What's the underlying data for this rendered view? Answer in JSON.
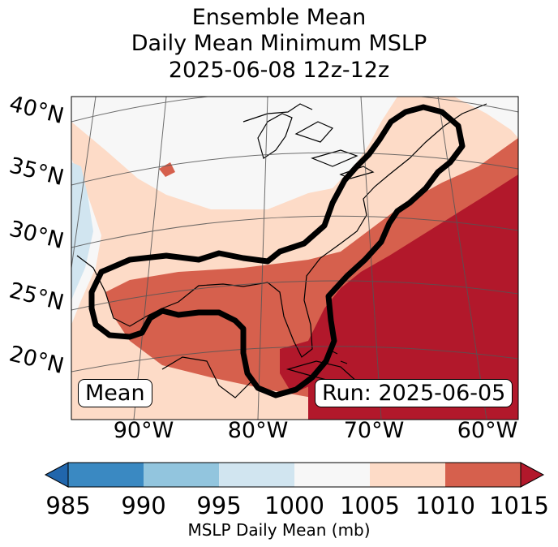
{
  "title": {
    "line1": "Ensemble Mean",
    "line2": "Daily Mean Minimum MSLP",
    "line3": "2025-06-08 12z-12z"
  },
  "map": {
    "lat_labels": [
      "40°N",
      "35°N",
      "30°N",
      "25°N",
      "20°N"
    ],
    "lon_labels": [
      "90°W",
      "80°W",
      "70°W",
      "60°W"
    ],
    "mean_label": "Mean",
    "run_label": "Run: 2025-06-05",
    "contour_color": "#000000",
    "grid_color": "#555555",
    "coast_color": "#000000"
  },
  "colorbar": {
    "label": "MSLP Daily Mean (mb)",
    "ticks": [
      "985",
      "990",
      "995",
      "1000",
      "1005",
      "1010",
      "1015"
    ],
    "colors": [
      "#2166ac",
      "#3a89c2",
      "#92c5de",
      "#d1e5f0",
      "#f7f7f7",
      "#fddbc7",
      "#d6604d",
      "#b2182b"
    ],
    "bins": [
      {
        "range": "<985",
        "color": "#2166ac"
      },
      {
        "range": "985-990",
        "color": "#3a89c2"
      },
      {
        "range": "990-995",
        "color": "#92c5de"
      },
      {
        "range": "995-1000",
        "color": "#d1e5f0"
      },
      {
        "range": "1000-1005",
        "color": "#f7f7f7"
      },
      {
        "range": "1005-1010",
        "color": "#fddbc7"
      },
      {
        "range": "1010-1015",
        "color": "#d6604d"
      },
      {
        "range": ">1015",
        "color": "#b2182b"
      }
    ]
  }
}
